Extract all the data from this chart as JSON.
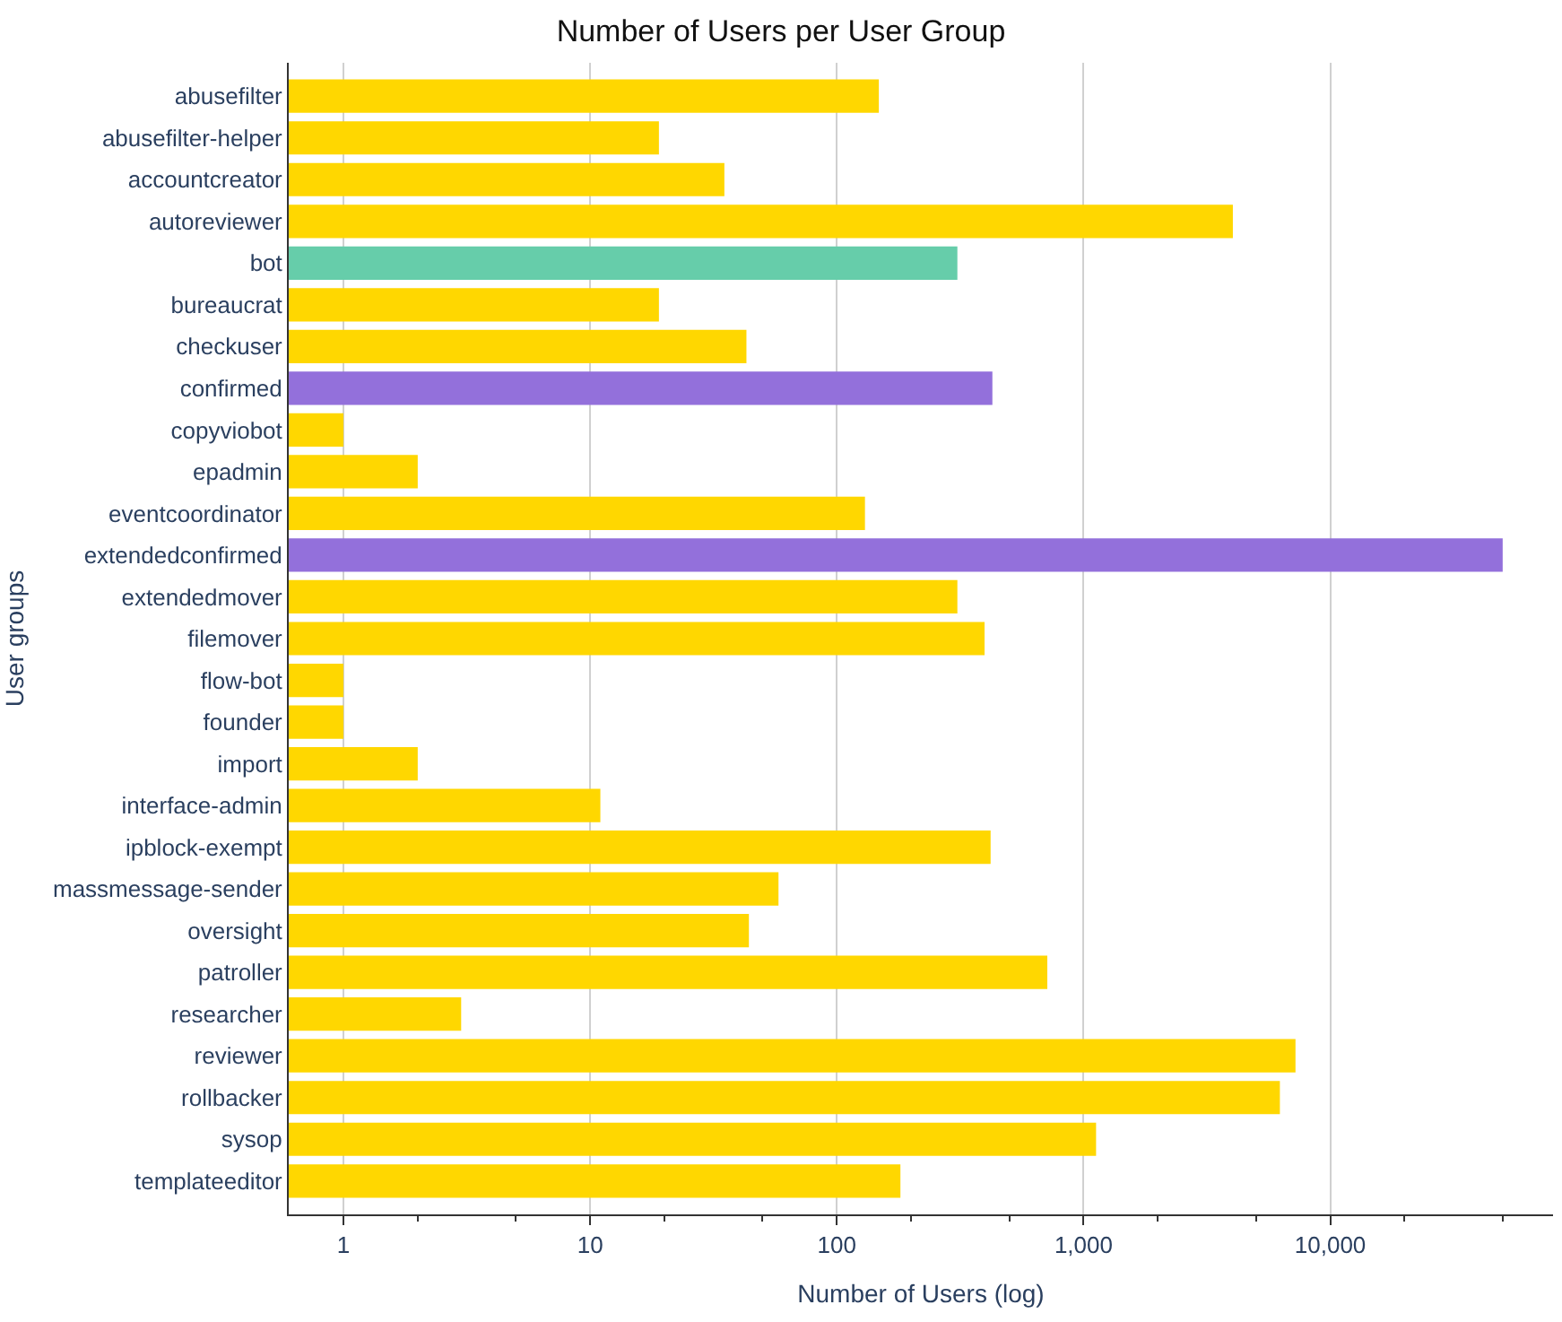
{
  "chart_data": {
    "type": "bar",
    "orientation": "horizontal",
    "title": "Number of Users per User Group",
    "xlabel": "Number of Users (log)",
    "ylabel": "User groups",
    "categories": [
      "abusefilter",
      "abusefilter-helper",
      "accountcreator",
      "autoreviewer",
      "bot",
      "bureaucrat",
      "checkuser",
      "confirmed",
      "copyviobot",
      "epadmin",
      "eventcoordinator",
      "extendedconfirmed",
      "extendedmover",
      "filemover",
      "flow-bot",
      "founder",
      "import",
      "interface-admin",
      "ipblock-exempt",
      "massmessage-sender",
      "oversight",
      "patroller",
      "researcher",
      "reviewer",
      "rollbacker",
      "sysop",
      "templateeditor"
    ],
    "values": [
      148,
      19,
      35,
      4030,
      308,
      19,
      43,
      427,
      1,
      2,
      130,
      50000,
      308,
      397,
      1,
      1,
      2,
      11,
      420,
      58,
      44,
      713,
      3,
      7230,
      6250,
      1124,
      181
    ],
    "colors": [
      "#ffd700",
      "#ffd700",
      "#ffd700",
      "#ffd700",
      "#66cdaa",
      "#ffd700",
      "#ffd700",
      "#9370db",
      "#ffd700",
      "#ffd700",
      "#ffd700",
      "#9370db",
      "#ffd700",
      "#ffd700",
      "#ffd700",
      "#ffd700",
      "#ffd700",
      "#ffd700",
      "#ffd700",
      "#ffd700",
      "#ffd700",
      "#ffd700",
      "#ffd700",
      "#ffd700",
      "#ffd700",
      "#ffd700",
      "#ffd700"
    ],
    "log": "x",
    "xlim": [
      0.6,
      80000
    ],
    "xticks": [
      1,
      10,
      100,
      {
        "value": 1000,
        "label": "1,000"
      },
      {
        "value": 10000,
        "label": "10,000"
      }
    ],
    "grid": "x",
    "legend": false
  }
}
